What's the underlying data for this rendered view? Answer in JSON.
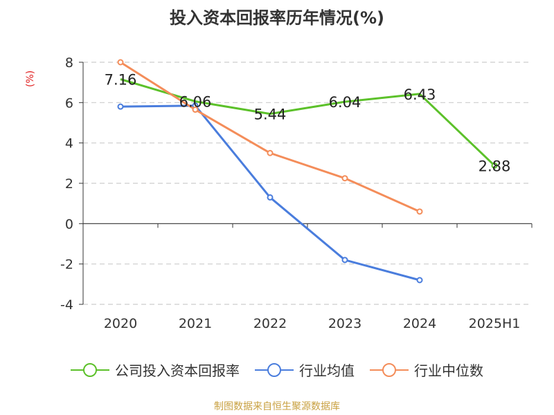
{
  "title": "投入资本回报率历年情况(%)",
  "unit": "(%)",
  "source": "制图数据来自恒生聚源数据库",
  "colors": {
    "company": "#5cc12a",
    "avg": "#4a7ddd",
    "median": "#f48d5a"
  },
  "chart_data": {
    "type": "line",
    "title": "投入资本回报率历年情况(%)",
    "ylabel": "(%)",
    "xlabel": "",
    "categories": [
      "2020",
      "2021",
      "2022",
      "2023",
      "2024",
      "2025H1"
    ],
    "ylim": [
      -4,
      8
    ],
    "yticks": [
      8,
      6,
      4,
      2,
      0,
      -2,
      -4
    ],
    "grid": true,
    "legend_position": "bottom",
    "series": [
      {
        "name": "公司投入资本回报率",
        "color": "#5cc12a",
        "values": [
          7.16,
          6.06,
          5.44,
          6.04,
          6.43,
          2.88
        ],
        "labels": [
          "7.16",
          "6.06",
          "5.44",
          "6.04",
          "6.43",
          "2.88"
        ],
        "markers": [
          false,
          false,
          false,
          false,
          false,
          true
        ]
      },
      {
        "name": "行业均值",
        "color": "#4a7ddd",
        "values": [
          5.8,
          5.85,
          1.3,
          -1.8,
          -2.8,
          null
        ],
        "markers": [
          true,
          true,
          true,
          true,
          true,
          false
        ]
      },
      {
        "name": "行业中位数",
        "color": "#f48d5a",
        "values": [
          8.0,
          5.65,
          3.5,
          2.25,
          0.6,
          null
        ],
        "markers": [
          true,
          true,
          true,
          true,
          true,
          false
        ]
      }
    ]
  }
}
